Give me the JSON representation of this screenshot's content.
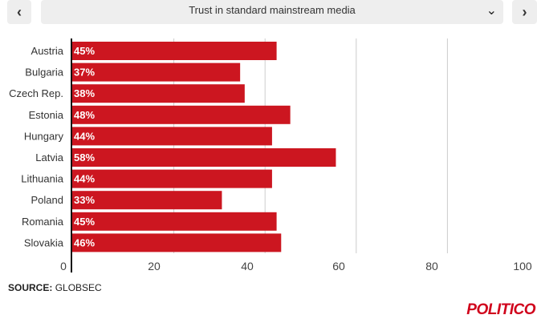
{
  "controls": {
    "prev_icon": "chevron-left-icon",
    "next_icon": "chevron-right-icon",
    "selected_option": "Trust in standard mainstream media",
    "dropdown_icon": "chevron-down-icon"
  },
  "chart_data": {
    "type": "bar",
    "orientation": "horizontal",
    "categories": [
      "Austria",
      "Bulgaria",
      "Czech Rep.",
      "Estonia",
      "Hungary",
      "Latvia",
      "Lithuania",
      "Poland",
      "Romania",
      "Slovakia"
    ],
    "values": [
      45,
      37,
      38,
      48,
      44,
      58,
      44,
      33,
      45,
      46
    ],
    "data_labels": [
      "45%",
      "37%",
      "38%",
      "48%",
      "44%",
      "58%",
      "44%",
      "33%",
      "45%",
      "46%"
    ],
    "xlim": [
      0,
      100
    ],
    "xticks": [
      0,
      20,
      40,
      60,
      80,
      100
    ],
    "grid": true,
    "bar_color": "#cc1620",
    "label_color": "#ffffff"
  },
  "footer": {
    "source_label": "SOURCE:",
    "source_value": "GLOBSEC",
    "brand": "POLITICO",
    "brand_color": "#d0021b"
  }
}
